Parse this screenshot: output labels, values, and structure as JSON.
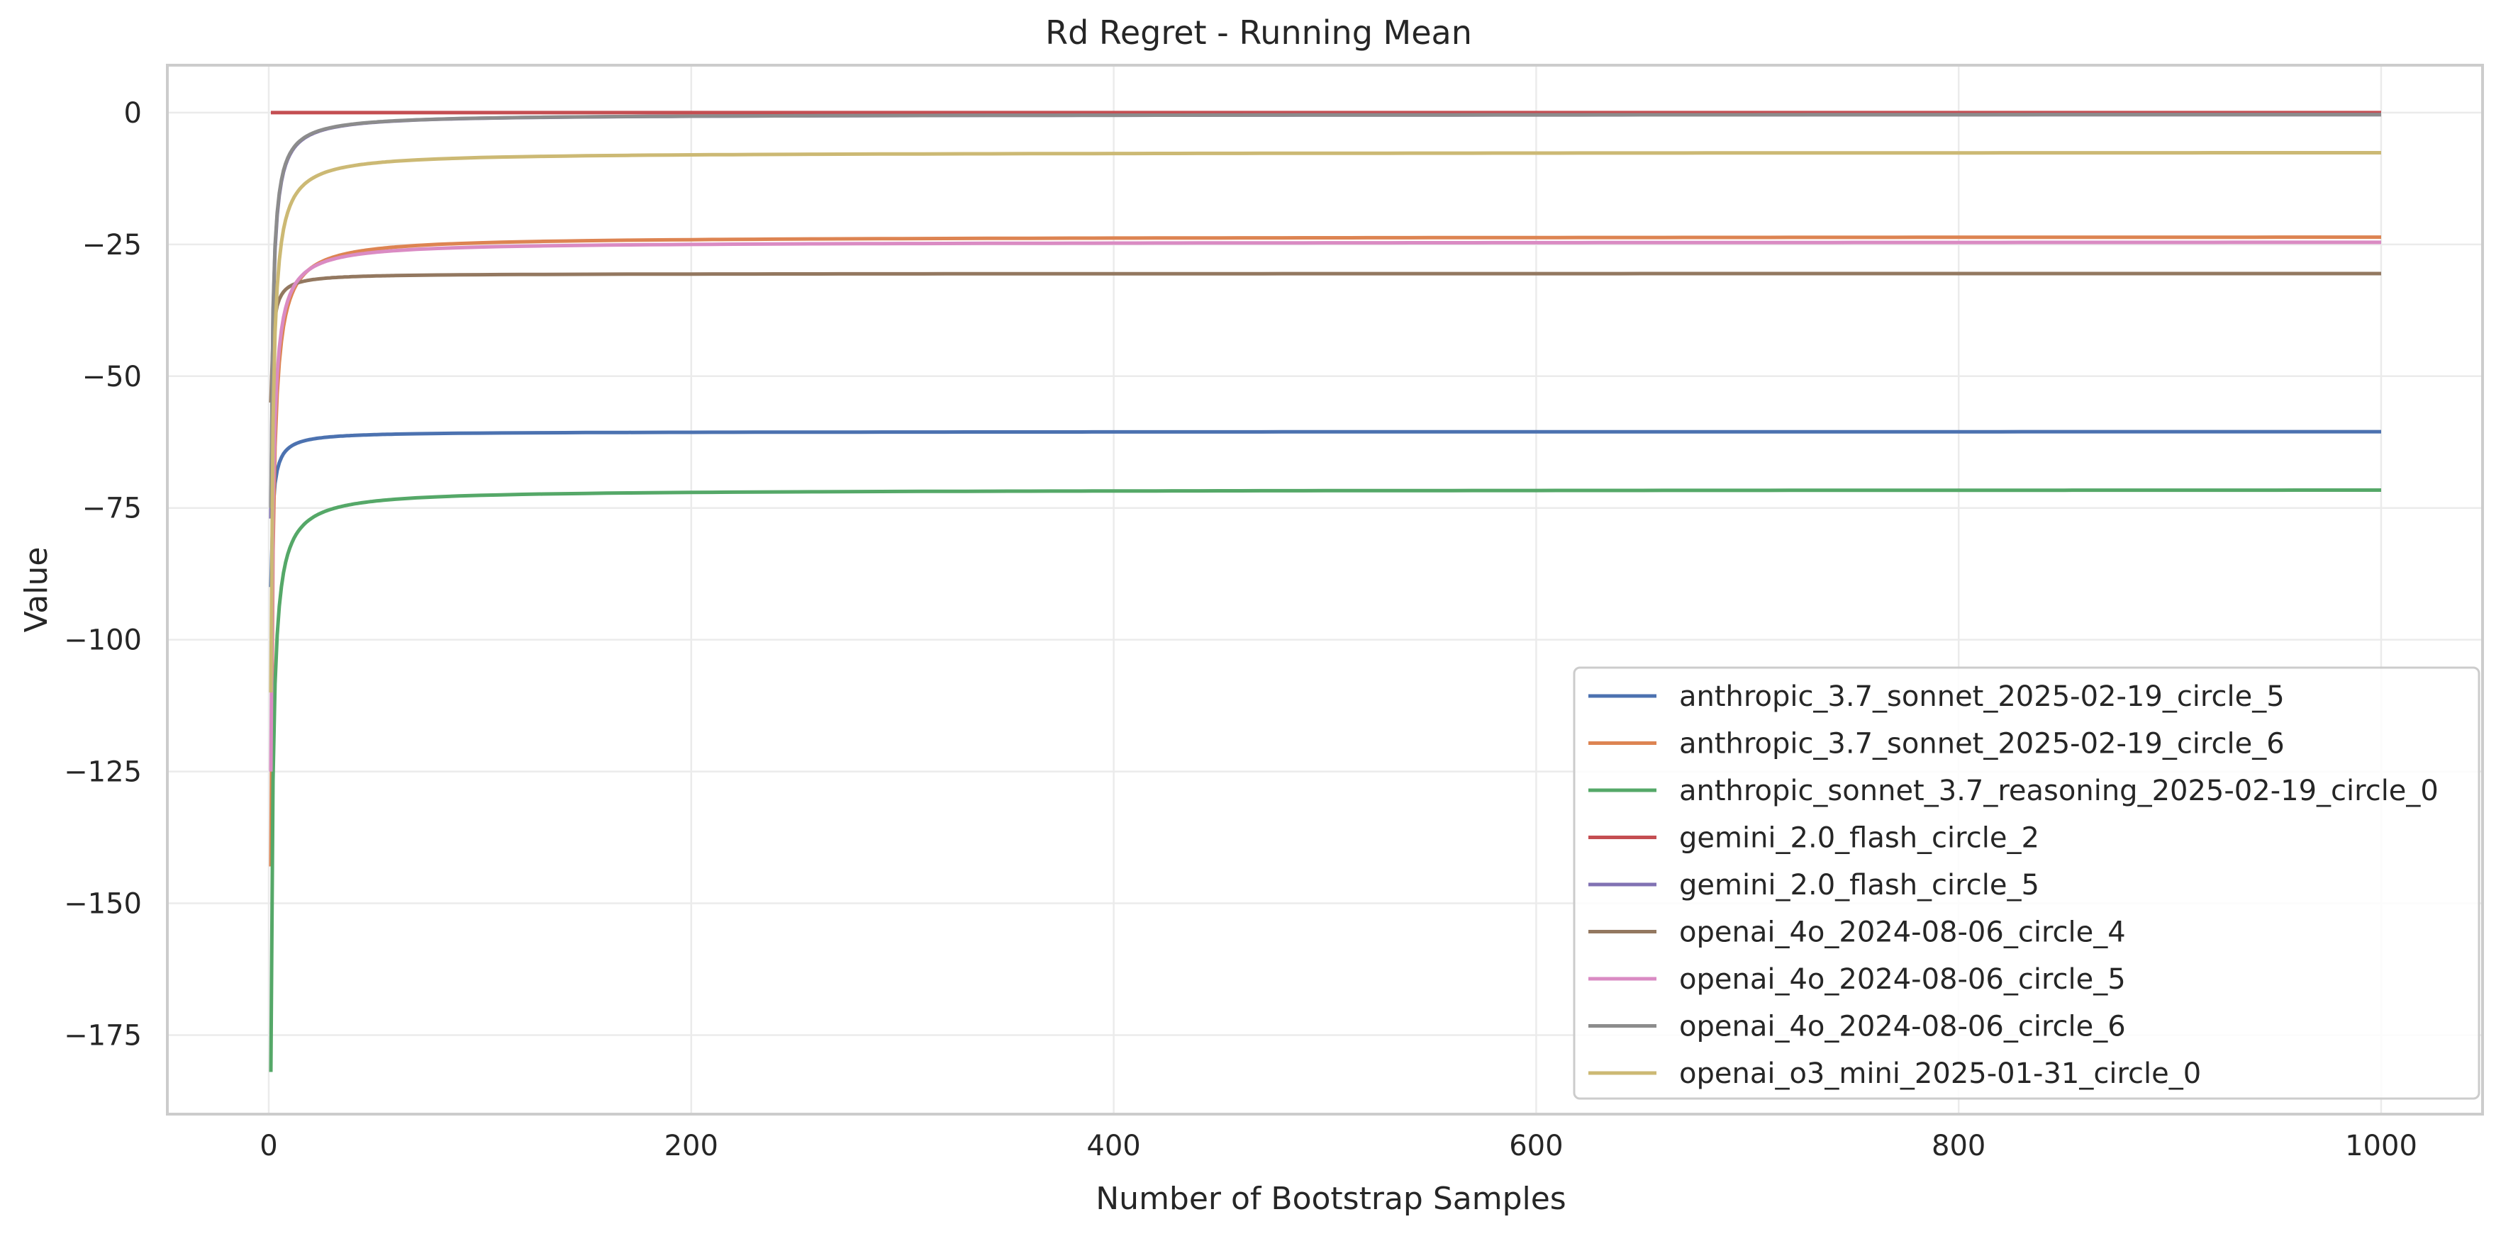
{
  "chart_data": {
    "type": "line",
    "title": "Rd Regret - Running Mean",
    "xlabel": "Number of Bootstrap Samples",
    "ylabel": "Value",
    "xlim": [
      -48,
      1048
    ],
    "ylim": [
      -190,
      9
    ],
    "xticks": [
      0,
      200,
      400,
      600,
      800,
      1000
    ],
    "yticks": [
      0,
      -25,
      -50,
      -75,
      -100,
      -125,
      -150,
      -175
    ],
    "grid": true,
    "legend_position": "lower-right",
    "series": [
      {
        "name": "anthropic_3.7_sonnet_2025-02-19_circle_5",
        "color": "#4c72b0",
        "start": -90,
        "final": -60.5
      },
      {
        "name": "anthropic_3.7_sonnet_2025-02-19_circle_6",
        "color": "#dd8452",
        "start": -143,
        "final": -23.5
      },
      {
        "name": "anthropic_sonnet_3.7_reasoning_2025-02-19_circle_0",
        "color": "#55a868",
        "start": -182,
        "final": -71.5
      },
      {
        "name": "gemini_2.0_flash_circle_2",
        "color": "#c44e52",
        "start": 0,
        "final": 0
      },
      {
        "name": "gemini_2.0_flash_circle_5",
        "color": "#8172b3",
        "start": -77,
        "final": -0.3
      },
      {
        "name": "openai_4o_2024-08-06_circle_4",
        "color": "#937860",
        "start": -55,
        "final": -30.5
      },
      {
        "name": "openai_4o_2024-08-06_circle_5",
        "color": "#da8bc3",
        "start": -125,
        "final": -24.5
      },
      {
        "name": "openai_4o_2024-08-06_circle_6",
        "color": "#8c8c8c",
        "start": -75,
        "final": -0.3
      },
      {
        "name": "openai_o3_mini_2025-01-31_circle_0",
        "color": "#ccb974",
        "start": -110,
        "final": -7.5
      }
    ]
  }
}
